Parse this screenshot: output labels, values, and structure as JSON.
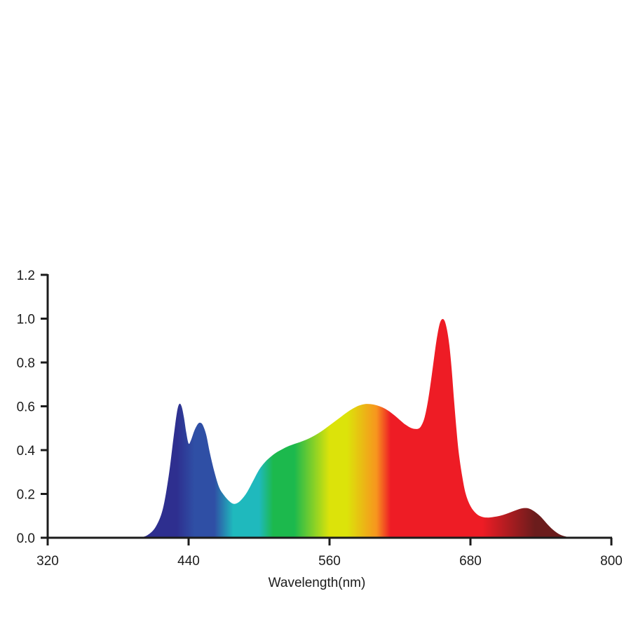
{
  "chart_data": {
    "type": "area",
    "title": "",
    "xlabel": "Wavelength(nm)",
    "ylabel": "",
    "xlim": [
      320,
      800
    ],
    "ylim": [
      0,
      1.2
    ],
    "x_ticks": [
      320,
      440,
      560,
      680,
      800
    ],
    "x_tick_labels": [
      "320",
      "440",
      "560",
      "680",
      "800"
    ],
    "y_ticks": [
      0,
      0.2,
      0.4,
      0.6,
      0.8,
      1.0,
      1.2
    ],
    "y_tick_labels": [
      "0.0",
      "0.2",
      "0.4",
      "0.6",
      "0.8",
      "1.0",
      "1.2"
    ],
    "grid": false,
    "fill": "visible-spectrum gradient (violet to deep red)",
    "colors": {
      "axis": "#1c1c1c",
      "violet": "#2e2f8f",
      "blue": "#2f4fa5",
      "cyan": "#1fb9bd",
      "green": "#1cb94d",
      "yellow": "#dce30a",
      "orange": "#f7951e",
      "red": "#ee1c25",
      "deep_red": "#6b1c1c"
    },
    "series": [
      {
        "x": [
          398,
          405,
          412,
          418,
          423,
          427,
          430,
          432,
          434,
          436,
          438,
          440,
          442,
          445,
          448,
          450,
          452,
          455,
          458,
          462,
          466,
          470,
          474,
          478,
          482,
          486,
          490,
          495,
          500,
          505,
          510,
          515,
          520,
          525,
          530,
          535,
          540,
          545,
          550,
          555,
          560,
          565,
          570,
          575,
          580,
          585,
          590,
          595,
          600,
          605,
          610,
          615,
          620,
          625,
          630,
          635,
          638,
          641,
          644,
          647,
          650,
          652,
          654,
          656,
          658,
          660,
          662,
          664,
          666,
          668,
          670,
          673,
          676,
          680,
          685,
          690,
          695,
          700,
          705,
          710,
          715,
          720,
          725,
          730,
          735,
          740,
          745,
          750,
          755,
          760,
          765,
          770,
          775
        ],
        "y": [
          0,
          0.012,
          0.05,
          0.13,
          0.28,
          0.45,
          0.57,
          0.61,
          0.6,
          0.55,
          0.48,
          0.43,
          0.445,
          0.49,
          0.52,
          0.525,
          0.515,
          0.47,
          0.39,
          0.3,
          0.23,
          0.195,
          0.17,
          0.155,
          0.16,
          0.18,
          0.21,
          0.26,
          0.31,
          0.345,
          0.37,
          0.39,
          0.405,
          0.418,
          0.428,
          0.437,
          0.447,
          0.46,
          0.475,
          0.493,
          0.513,
          0.533,
          0.553,
          0.573,
          0.59,
          0.603,
          0.61,
          0.61,
          0.605,
          0.595,
          0.58,
          0.56,
          0.537,
          0.515,
          0.5,
          0.497,
          0.51,
          0.55,
          0.63,
          0.74,
          0.86,
          0.93,
          0.98,
          0.998,
          0.99,
          0.95,
          0.88,
          0.77,
          0.63,
          0.5,
          0.39,
          0.28,
          0.2,
          0.145,
          0.11,
          0.095,
          0.092,
          0.095,
          0.1,
          0.108,
          0.118,
          0.128,
          0.135,
          0.133,
          0.118,
          0.095,
          0.065,
          0.038,
          0.018,
          0.007,
          0.002,
          0,
          0
        ]
      }
    ]
  }
}
